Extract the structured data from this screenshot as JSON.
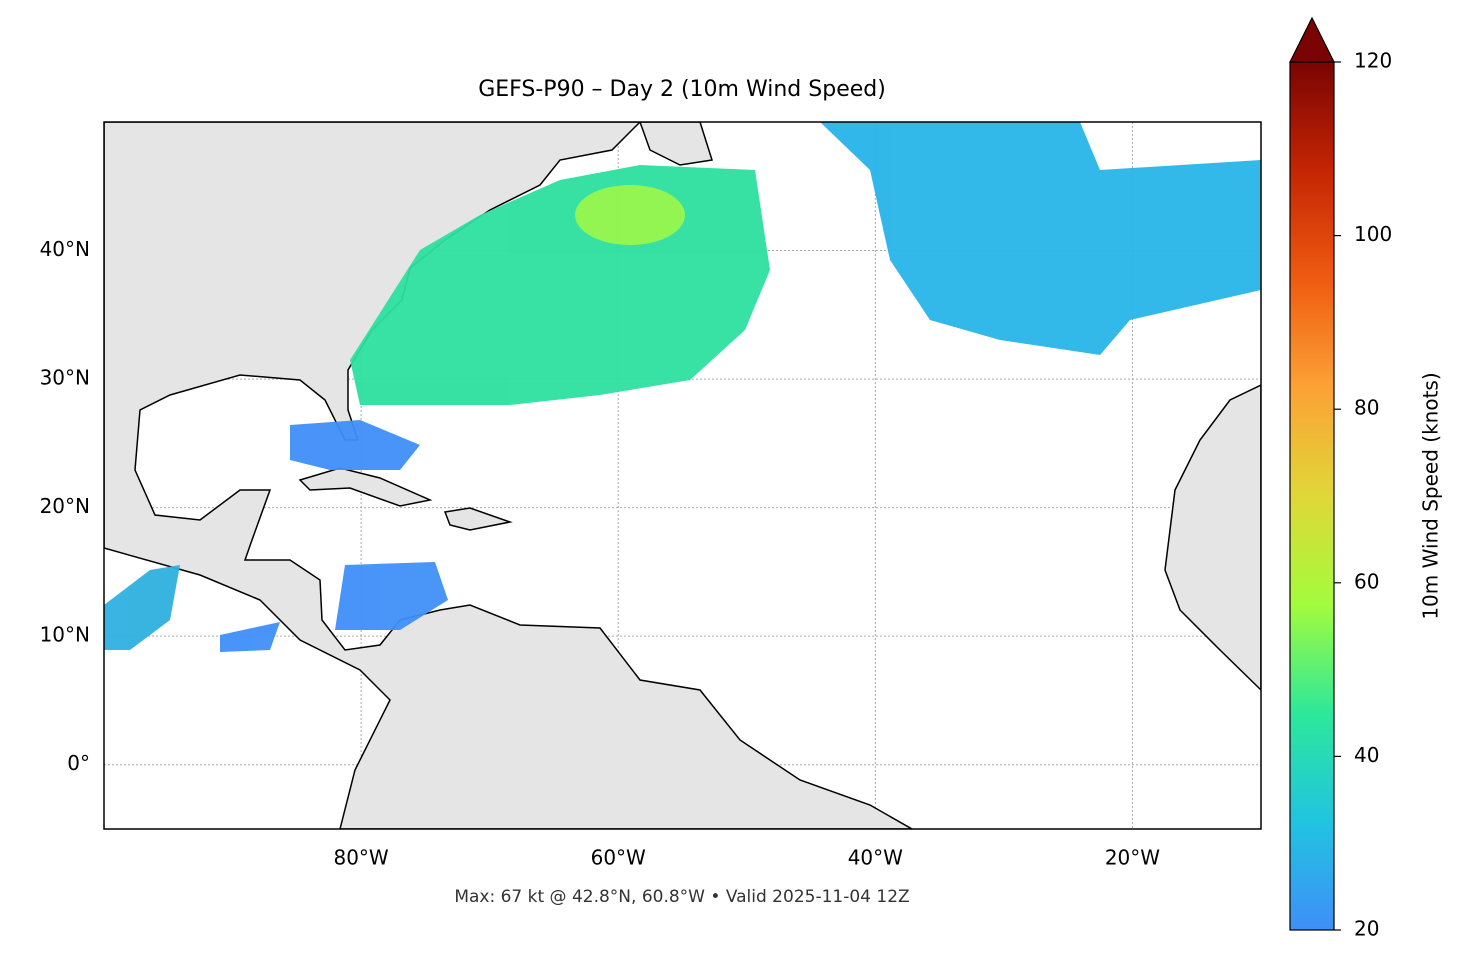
{
  "chart_data": {
    "type": "map",
    "title": "GEFS-P90 – Day 2 (10m Wind Speed)",
    "xlim": [
      -100,
      -10
    ],
    "ylim": [
      -5,
      50
    ],
    "xticks": [
      {
        "value": -80,
        "label": "80°W"
      },
      {
        "value": -60,
        "label": "60°W"
      },
      {
        "value": -40,
        "label": "40°W"
      },
      {
        "value": -20,
        "label": "20°W"
      }
    ],
    "yticks": [
      {
        "value": 0,
        "label": "0°"
      },
      {
        "value": 10,
        "label": "10°N"
      },
      {
        "value": 20,
        "label": "20°N"
      },
      {
        "value": 30,
        "label": "30°N"
      },
      {
        "value": 40,
        "label": "40°N"
      }
    ],
    "grid": true,
    "colorbar": {
      "label": "10m Wind Speed (knots)",
      "lim": [
        20,
        120
      ],
      "ticks": [
        20,
        40,
        60,
        80,
        100,
        120
      ],
      "colors": [
        "#3f8ff8",
        "#21c4e0",
        "#2de89a",
        "#a3fc3c",
        "#e0d738",
        "#fca235",
        "#ef5b11",
        "#c42503",
        "#7a0403"
      ]
    },
    "caption": "Max: 67 kt @ 42.8°N, 60.8°W • Valid 2025-11-04 12Z"
  }
}
